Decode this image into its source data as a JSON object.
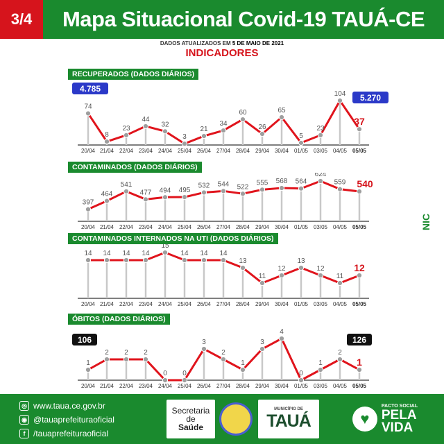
{
  "header": {
    "page": "3/4",
    "title": "Mapa Situacional Covid-19 TAUÁ-CE"
  },
  "updated_prefix": "DADOS ATUALIZADOS EM ",
  "updated_date": "5 DE MAIO DE 2021",
  "subtitle": "INDICADORES",
  "colors": {
    "green": "#1a8a2e",
    "red": "#d6141c",
    "line": "#e0141c",
    "point": "#9e9e9e",
    "blue_badge": "#2b39c8",
    "black_badge": "#111111"
  },
  "chart_data": [
    {
      "type": "line",
      "title": "RECUPERADOS  (DADOS DIÁRIOS)",
      "categories": [
        "20/04",
        "21/04",
        "22/04",
        "23/04",
        "24/04",
        "25/04",
        "26/04",
        "27/04",
        "28/04",
        "29/04",
        "30/04",
        "01/05",
        "03/05",
        "04/05",
        "05/05"
      ],
      "values": [
        74,
        8,
        23,
        44,
        32,
        3,
        21,
        34,
        60,
        26,
        65,
        5,
        23,
        104,
        37
      ],
      "badges": {
        "left": "4.785",
        "right": "5.270"
      }
    },
    {
      "type": "line",
      "title": "CONTAMINADOS   (DADOS DIÁRIOS)",
      "categories": [
        "20/04",
        "21/04",
        "22/04",
        "23/04",
        "24/04",
        "25/04",
        "26/04",
        "27/04",
        "28/04",
        "29/04",
        "30/04",
        "01/05",
        "03/05",
        "04/05",
        "05/05"
      ],
      "values": [
        397,
        464,
        541,
        477,
        494,
        495,
        532,
        544,
        522,
        555,
        568,
        564,
        624,
        559,
        540
      ]
    },
    {
      "type": "line",
      "title": "CONTAMINADOS INTERNADOS NA UTI  (DADOS DIÁRIOS)",
      "categories": [
        "20/04",
        "21/04",
        "22/04",
        "23/04",
        "24/04",
        "25/04",
        "26/04",
        "27/04",
        "28/04",
        "29/04",
        "30/04",
        "01/05",
        "03/05",
        "04/05",
        "05/05"
      ],
      "values": [
        14,
        14,
        14,
        14,
        15,
        14,
        14,
        14,
        13,
        11,
        12,
        13,
        12,
        11,
        12
      ]
    },
    {
      "type": "line",
      "title": "ÓBITOS  (DADOS DIÁRIOS)",
      "categories": [
        "20/04",
        "21/04",
        "22/04",
        "23/04",
        "24/04",
        "25/04",
        "26/04",
        "27/04",
        "28/04",
        "29/04",
        "30/04",
        "01/05",
        "03/05",
        "04/05",
        "05/05"
      ],
      "values": [
        1,
        2,
        2,
        2,
        0,
        0,
        3,
        2,
        1,
        3,
        4,
        0,
        1,
        2,
        1
      ],
      "badges": {
        "left": "106",
        "right": "126"
      }
    }
  ],
  "footer": {
    "site": "www.taua.ce.gov.br",
    "instagram": "@tauaprefeituraoficial",
    "facebook": "/tauaprefeituraoficial",
    "secretaria_line1": "Secretaria",
    "secretaria_line2": "de",
    "secretaria_line3": "Saúde",
    "municipio": "MUNICÍPIO DE",
    "taua": "TAUÁ",
    "pacto_small": "PACTO SOCIAL",
    "pacto_big1": "PELA",
    "pacto_big2": "VIDA",
    "side_logo": "NIC"
  }
}
